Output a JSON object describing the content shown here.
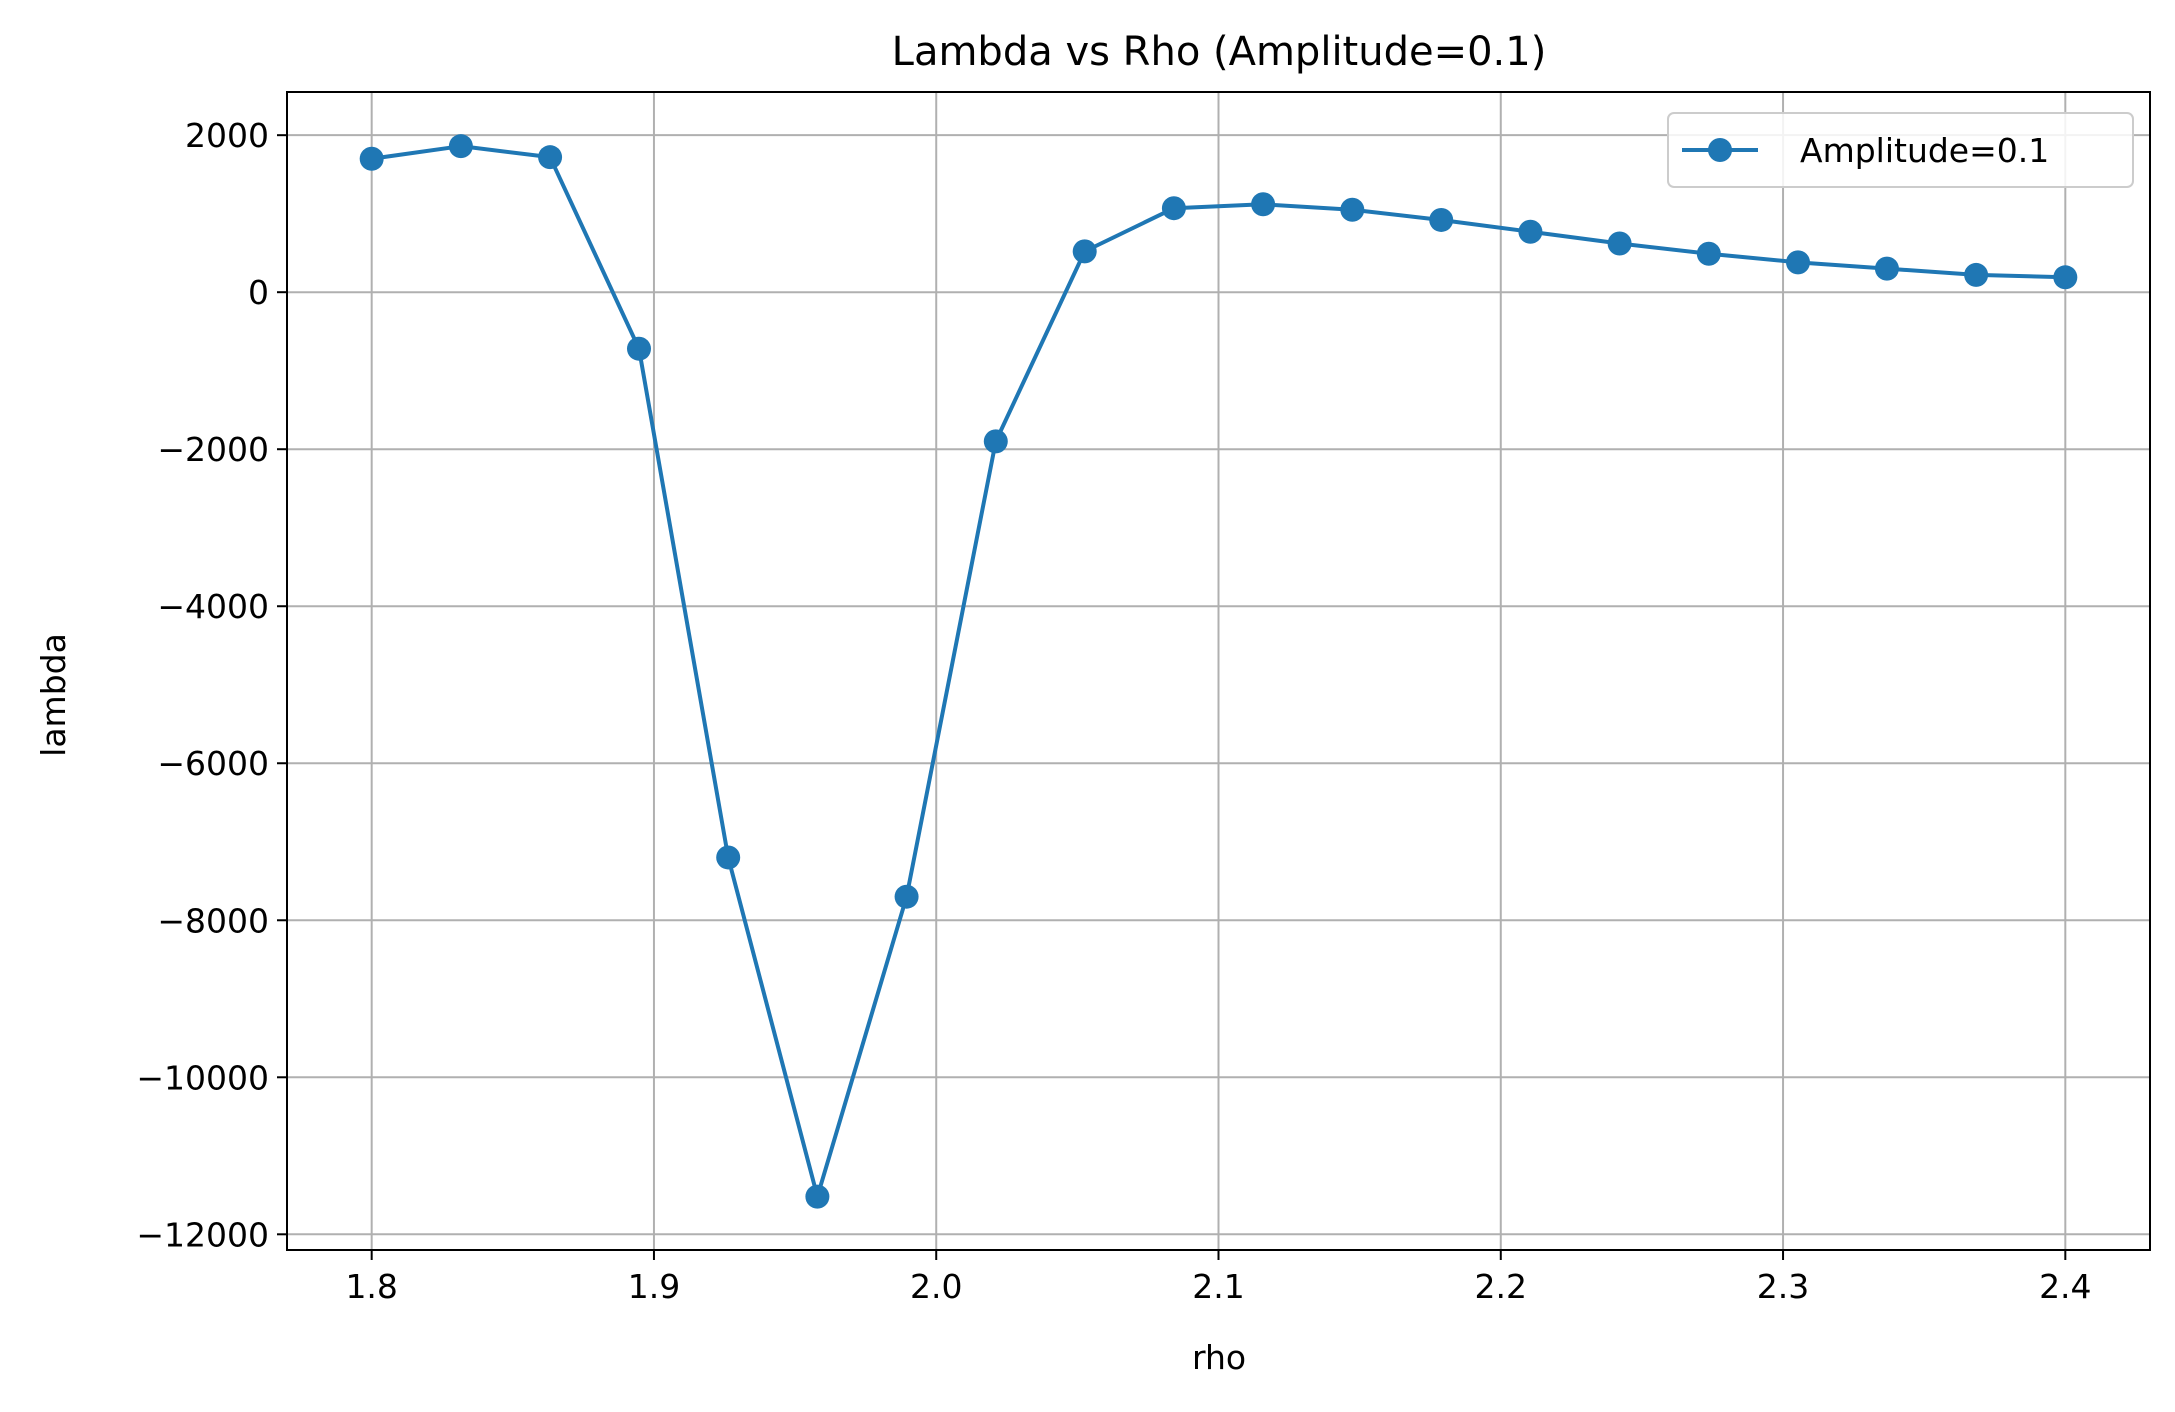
{
  "chart_data": {
    "type": "line",
    "title": "Lambda vs Rho (Amplitude=0.1)",
    "xlabel": "rho",
    "ylabel": "lambda",
    "xlim": [
      1.77,
      2.43
    ],
    "ylim": [
      -12200,
      2550
    ],
    "xticks": [
      1.8,
      1.9,
      2.0,
      2.1,
      2.2,
      2.3,
      2.4
    ],
    "xtick_labels": [
      "1.8",
      "1.9",
      "2.0",
      "2.1",
      "2.2",
      "2.3",
      "2.4"
    ],
    "yticks": [
      2000,
      0,
      -2000,
      -4000,
      -6000,
      -8000,
      -10000,
      -12000
    ],
    "ytick_labels": [
      "2000",
      "0",
      "−2000",
      "−4000",
      "−6000",
      "−8000",
      "−10000",
      "−12000"
    ],
    "grid": true,
    "legend_position": "top-right",
    "series": [
      {
        "name": "Amplitude=0.1",
        "color": "#1f77b4",
        "marker": "circle",
        "x": [
          1.8,
          1.8316,
          1.8632,
          1.8947,
          1.9263,
          1.9579,
          1.9895,
          2.0211,
          2.0526,
          2.0842,
          2.1158,
          2.1474,
          2.1789,
          2.2105,
          2.2421,
          2.2737,
          2.3053,
          2.3368,
          2.3684,
          2.4
        ],
        "y": [
          1700,
          1860,
          1720,
          -720,
          -7200,
          -11520,
          -7700,
          -1900,
          520,
          1070,
          1120,
          1050,
          920,
          770,
          620,
          490,
          380,
          300,
          220,
          190
        ]
      }
    ]
  }
}
